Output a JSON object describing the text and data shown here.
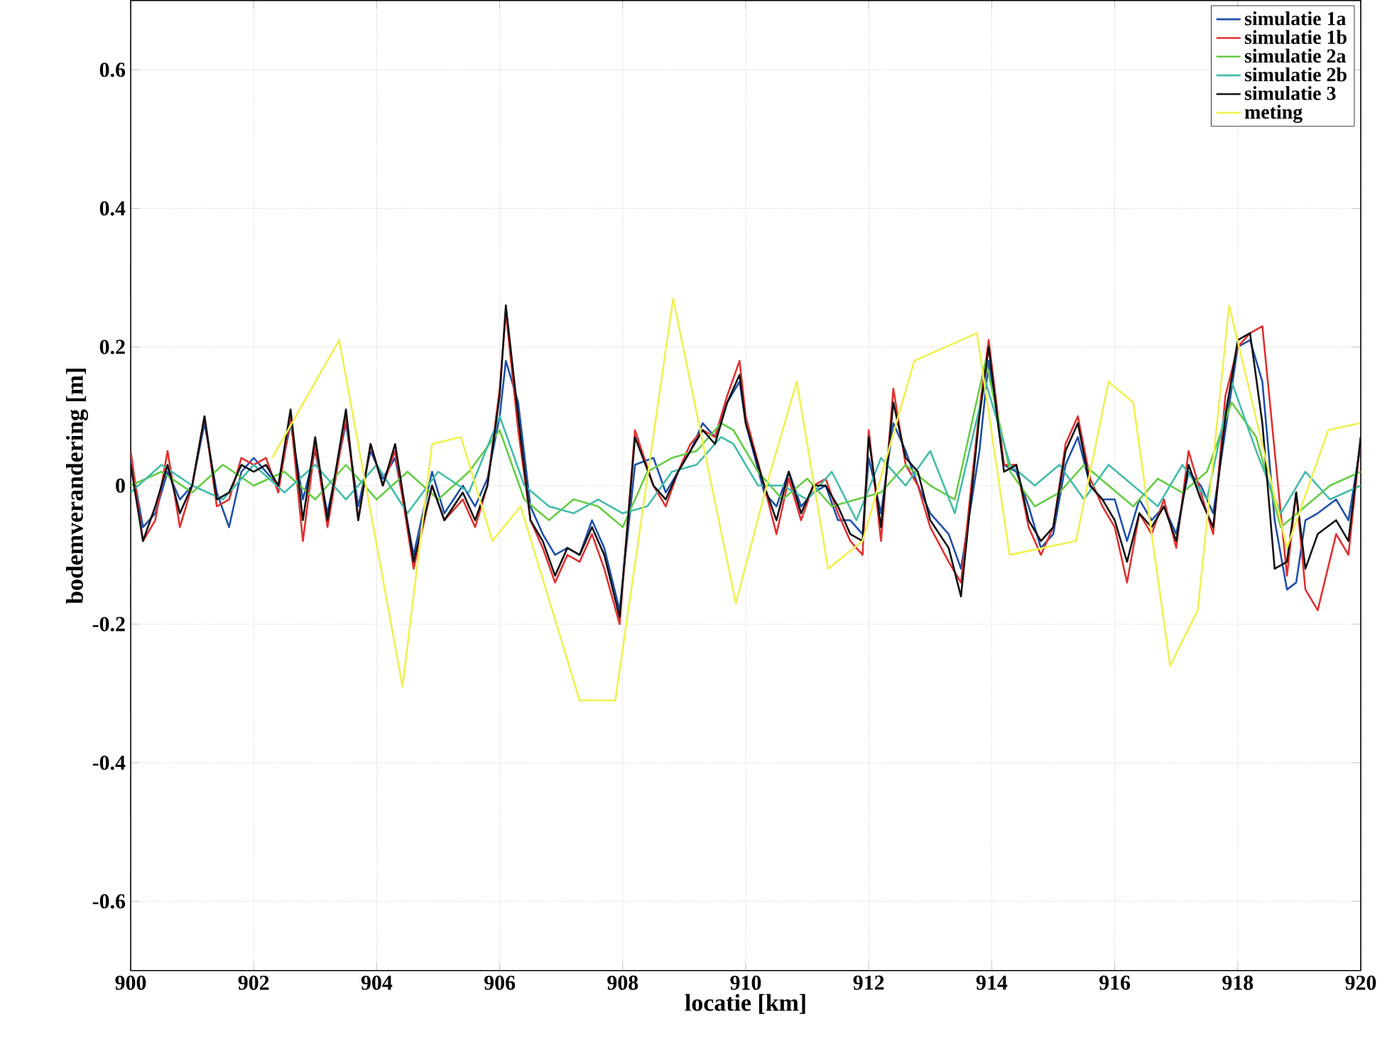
{
  "chart_data": {
    "type": "line",
    "xlabel": "locatie [km]",
    "ylabel": "bodemverandering [m]",
    "xlim": [
      900,
      920
    ],
    "ylim": [
      -0.7,
      0.7
    ],
    "xticks": [
      900,
      902,
      904,
      906,
      908,
      910,
      912,
      914,
      916,
      918,
      920
    ],
    "yticks": [
      -0.6,
      -0.4,
      -0.2,
      0,
      0.2,
      0.4,
      0.6
    ],
    "grid": true,
    "legend": "top right",
    "marker": "none",
    "line_style": "solid",
    "x": [
      900.0,
      900.2,
      900.4,
      900.6,
      900.8,
      901.0,
      901.2,
      901.4,
      901.6,
      901.8,
      902.0,
      902.2,
      902.4,
      902.6,
      902.8,
      903.0,
      903.2,
      903.5,
      903.7,
      903.9,
      904.1,
      904.3,
      904.6,
      904.9,
      905.1,
      905.4,
      905.6,
      905.8,
      906.0,
      906.1,
      906.3,
      906.5,
      906.7,
      906.9,
      907.1,
      907.3,
      907.5,
      907.7,
      907.95,
      908.2,
      908.5,
      908.7,
      908.9,
      909.1,
      909.3,
      909.5,
      909.7,
      909.9,
      910.0,
      910.3,
      910.5,
      910.7,
      910.9,
      911.1,
      911.3,
      911.5,
      911.7,
      911.9,
      912.0,
      912.2,
      912.4,
      912.6,
      912.8,
      913.0,
      913.3,
      913.5,
      913.8,
      913.95,
      914.2,
      914.4,
      914.6,
      914.8,
      915.0,
      915.2,
      915.4,
      915.6,
      915.8,
      916.0,
      916.2,
      916.4,
      916.6,
      916.8,
      917.0,
      917.2,
      917.4,
      917.6,
      917.8,
      918.0,
      918.2,
      918.4,
      918.6,
      918.8,
      918.95,
      919.1,
      919.3,
      919.6,
      919.8,
      920.0
    ],
    "series": [
      {
        "name": "simulatie 1a",
        "color": "#1f4fa8",
        "values": [
          0.04,
          -0.06,
          -0.04,
          0.02,
          -0.02,
          0.0,
          0.09,
          -0.01,
          -0.06,
          0.02,
          0.04,
          0.02,
          0.0,
          0.09,
          -0.02,
          0.05,
          -0.04,
          0.09,
          -0.03,
          0.05,
          0.01,
          0.04,
          -0.1,
          0.02,
          -0.04,
          0.0,
          -0.03,
          0.01,
          0.1,
          0.18,
          0.12,
          -0.03,
          -0.07,
          -0.1,
          -0.09,
          -0.1,
          -0.05,
          -0.09,
          -0.18,
          0.03,
          0.04,
          -0.01,
          0.02,
          0.05,
          0.09,
          0.07,
          0.12,
          0.15,
          0.09,
          -0.01,
          -0.03,
          0.02,
          -0.03,
          -0.01,
          0.0,
          -0.05,
          -0.05,
          -0.07,
          0.04,
          -0.04,
          0.09,
          0.05,
          0.0,
          -0.04,
          -0.07,
          -0.12,
          0.05,
          0.18,
          0.03,
          0.02,
          -0.03,
          -0.09,
          -0.07,
          0.03,
          0.07,
          0.0,
          -0.02,
          -0.02,
          -0.08,
          -0.02,
          -0.05,
          -0.03,
          -0.07,
          0.02,
          0.0,
          -0.04,
          0.08,
          0.2,
          0.21,
          0.15,
          -0.05,
          -0.15,
          -0.14,
          -0.05,
          -0.04,
          -0.02,
          -0.05,
          0.06
        ]
      },
      {
        "name": "simulatie 1b",
        "color": "#e03030",
        "values": [
          0.05,
          -0.08,
          -0.05,
          0.05,
          -0.06,
          0.0,
          0.1,
          -0.03,
          -0.02,
          0.04,
          0.03,
          0.04,
          -0.01,
          0.1,
          -0.08,
          0.06,
          -0.06,
          0.1,
          -0.05,
          0.06,
          0.0,
          0.05,
          -0.12,
          0.0,
          -0.05,
          -0.02,
          -0.06,
          0.0,
          0.14,
          0.25,
          0.08,
          -0.05,
          -0.09,
          -0.14,
          -0.1,
          -0.11,
          -0.07,
          -0.12,
          -0.2,
          0.08,
          0.0,
          -0.03,
          0.02,
          0.06,
          0.08,
          0.07,
          0.13,
          0.18,
          0.1,
          0.0,
          -0.07,
          0.01,
          -0.05,
          0.0,
          0.01,
          -0.04,
          -0.08,
          -0.1,
          0.08,
          -0.08,
          0.14,
          0.03,
          0.0,
          -0.06,
          -0.11,
          -0.14,
          0.11,
          0.21,
          0.03,
          0.03,
          -0.06,
          -0.1,
          -0.06,
          0.06,
          0.1,
          0.01,
          -0.03,
          -0.06,
          -0.14,
          -0.04,
          -0.07,
          -0.02,
          -0.09,
          0.05,
          -0.01,
          -0.07,
          0.13,
          0.2,
          0.22,
          0.23,
          0.05,
          -0.13,
          -0.01,
          -0.15,
          -0.18,
          -0.07,
          -0.1,
          0.07
        ]
      },
      {
        "name": "simulatie 2a",
        "color": "#66cc44",
        "x": [
          900.0,
          900.5,
          901.0,
          901.5,
          902.0,
          902.5,
          903.0,
          903.5,
          904.0,
          904.5,
          905.0,
          905.5,
          906.0,
          906.4,
          906.8,
          907.2,
          907.6,
          908.0,
          908.4,
          908.8,
          909.2,
          909.6,
          909.8,
          910.2,
          910.6,
          911.0,
          911.4,
          911.8,
          912.2,
          912.6,
          913.0,
          913.4,
          913.9,
          914.3,
          914.7,
          915.1,
          915.5,
          915.9,
          916.3,
          916.7,
          917.1,
          917.5,
          917.9,
          918.3,
          918.7,
          919.1,
          919.5,
          920.0
        ],
        "values": [
          0.0,
          0.02,
          -0.01,
          0.03,
          0.0,
          0.02,
          -0.02,
          0.03,
          -0.02,
          0.02,
          -0.02,
          0.02,
          0.08,
          -0.02,
          -0.05,
          -0.02,
          -0.03,
          -0.06,
          0.02,
          0.04,
          0.05,
          0.09,
          0.08,
          0.02,
          -0.02,
          0.01,
          -0.03,
          -0.02,
          -0.01,
          0.03,
          0.0,
          -0.02,
          0.18,
          0.02,
          -0.03,
          -0.01,
          0.03,
          0.0,
          -0.03,
          0.01,
          -0.01,
          0.02,
          0.12,
          0.07,
          -0.06,
          -0.03,
          0.0,
          0.02
        ]
      },
      {
        "name": "simulatie 2b",
        "color": "#44bbaa",
        "x": [
          900.0,
          900.5,
          901.0,
          901.5,
          902.0,
          902.5,
          903.0,
          903.5,
          904.0,
          904.5,
          905.0,
          905.5,
          906.0,
          906.4,
          906.8,
          907.2,
          907.6,
          908.0,
          908.4,
          908.8,
          909.2,
          909.6,
          909.8,
          910.2,
          910.6,
          911.0,
          911.4,
          911.8,
          912.2,
          912.6,
          913.0,
          913.4,
          913.9,
          914.3,
          914.7,
          915.1,
          915.5,
          915.9,
          916.3,
          916.7,
          917.1,
          917.5,
          917.9,
          918.3,
          918.7,
          919.1,
          919.5,
          920.0
        ],
        "values": [
          -0.01,
          0.03,
          0.0,
          -0.02,
          0.03,
          -0.01,
          0.03,
          -0.02,
          0.03,
          -0.04,
          0.02,
          -0.01,
          0.1,
          0.0,
          -0.03,
          -0.04,
          -0.02,
          -0.04,
          -0.03,
          0.02,
          0.03,
          0.07,
          0.06,
          0.0,
          0.0,
          -0.02,
          0.02,
          -0.05,
          0.04,
          0.0,
          0.05,
          -0.04,
          0.15,
          0.03,
          0.0,
          0.03,
          -0.02,
          0.03,
          0.0,
          -0.03,
          0.03,
          -0.02,
          0.15,
          0.05,
          -0.04,
          0.02,
          -0.02,
          0.0
        ]
      },
      {
        "name": "simulatie 3",
        "color": "#111111",
        "values": [
          0.03,
          -0.08,
          -0.03,
          0.03,
          -0.04,
          0.0,
          0.1,
          -0.02,
          -0.01,
          0.03,
          0.02,
          0.03,
          0.0,
          0.11,
          -0.05,
          0.07,
          -0.05,
          0.11,
          -0.05,
          0.06,
          0.0,
          0.06,
          -0.11,
          0.0,
          -0.05,
          -0.01,
          -0.05,
          0.0,
          0.13,
          0.26,
          0.1,
          -0.05,
          -0.08,
          -0.13,
          -0.09,
          -0.1,
          -0.06,
          -0.1,
          -0.19,
          0.07,
          0.0,
          -0.02,
          0.02,
          0.05,
          0.08,
          0.06,
          0.12,
          0.16,
          0.09,
          0.0,
          -0.05,
          0.02,
          -0.04,
          0.0,
          0.0,
          -0.03,
          -0.07,
          -0.08,
          0.07,
          -0.06,
          0.12,
          0.04,
          0.02,
          -0.05,
          -0.09,
          -0.16,
          0.1,
          0.2,
          0.02,
          0.03,
          -0.05,
          -0.08,
          -0.06,
          0.05,
          0.09,
          0.0,
          -0.02,
          -0.05,
          -0.11,
          -0.04,
          -0.06,
          -0.03,
          -0.08,
          0.03,
          -0.02,
          -0.06,
          0.1,
          0.21,
          0.22,
          0.09,
          -0.12,
          -0.11,
          -0.01,
          -0.12,
          -0.07,
          -0.05,
          -0.08,
          0.07
        ]
      },
      {
        "name": "meting",
        "color": "#f0f050",
        "x": [
          902.3,
          903.39,
          904.42,
          904.9,
          905.37,
          905.88,
          906.34,
          907.3,
          907.88,
          908.82,
          909.84,
          910.37,
          910.83,
          911.34,
          911.9,
          912.74,
          913.76,
          914.29,
          915.37,
          915.9,
          916.3,
          916.9,
          917.35,
          917.86,
          918.8,
          919.47,
          919.98
        ],
        "values": [
          0.04,
          0.21,
          -0.29,
          0.06,
          0.07,
          -0.08,
          -0.03,
          -0.31,
          -0.31,
          0.27,
          -0.17,
          0.01,
          0.15,
          -0.12,
          -0.08,
          0.18,
          0.22,
          -0.1,
          -0.08,
          0.15,
          0.12,
          -0.26,
          -0.18,
          0.26,
          -0.09,
          0.08,
          0.09
        ]
      }
    ]
  }
}
